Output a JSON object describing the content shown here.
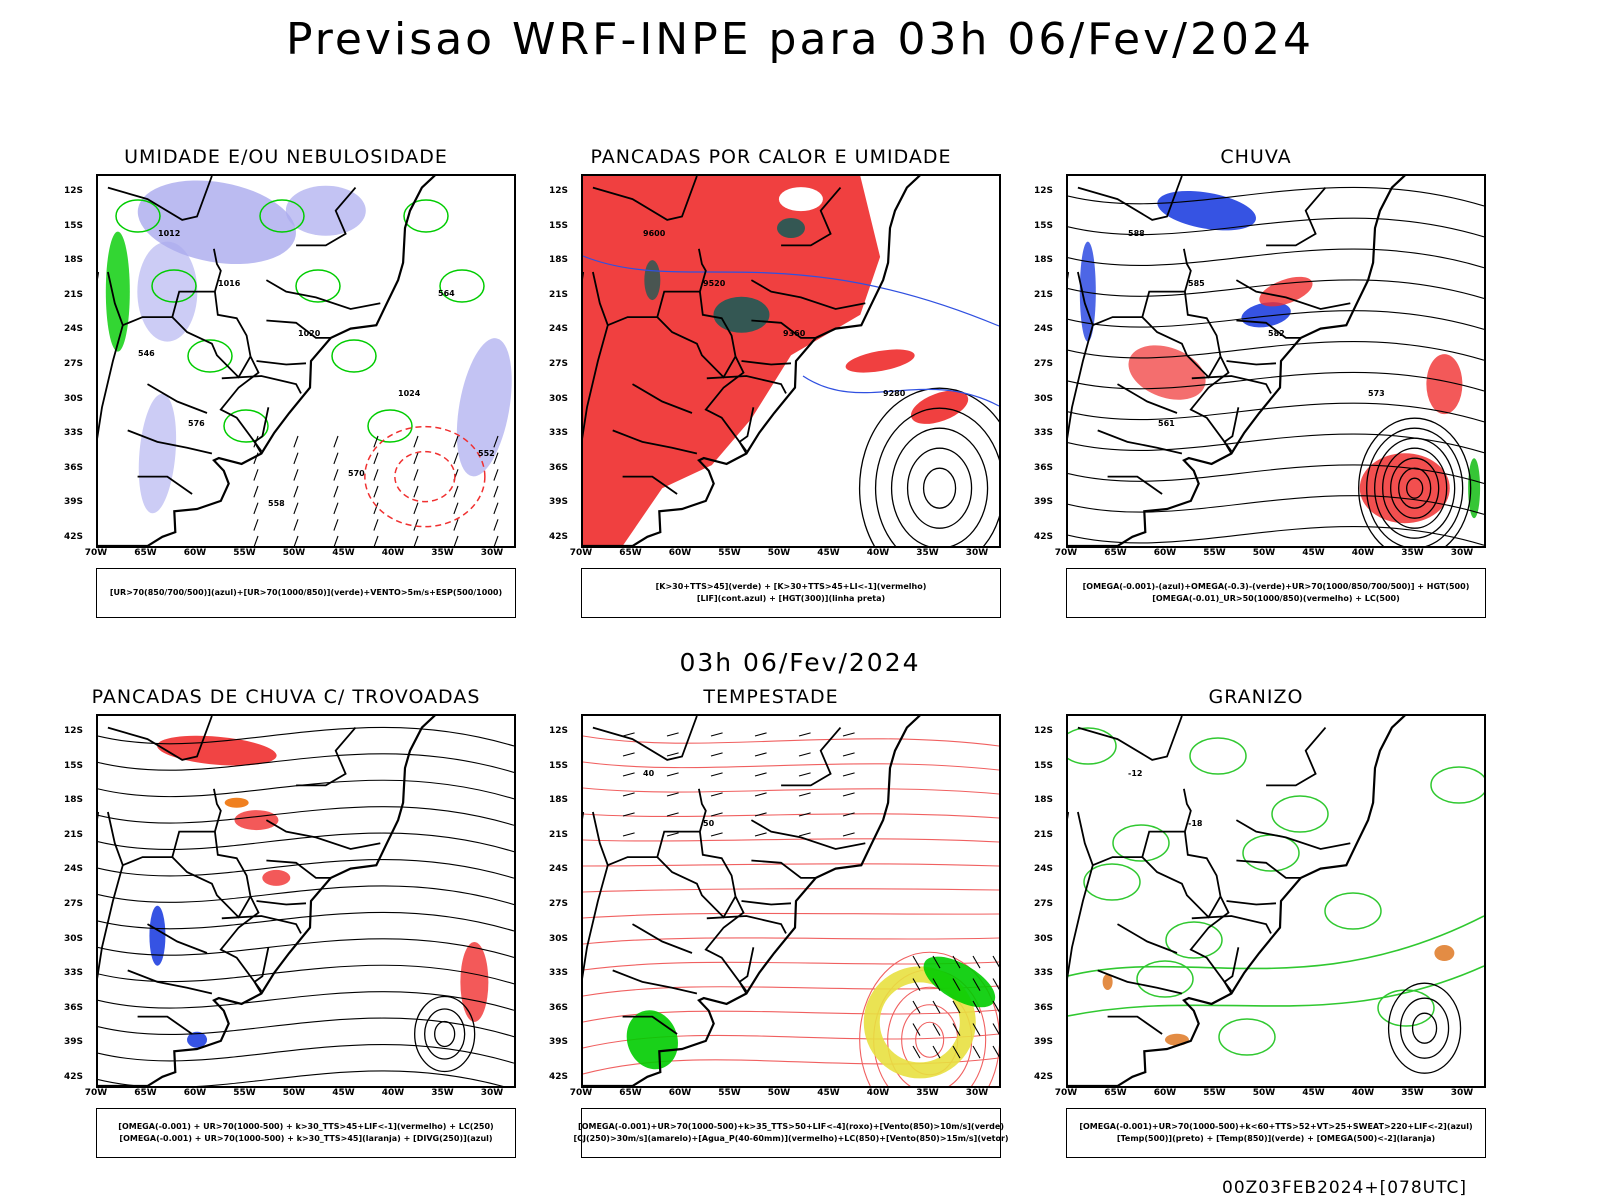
{
  "header": {
    "title": "Previsao WRF-INPE  para 03h 06/Fev/2024",
    "mid_title": "03h 06/Fev/2024",
    "footer": "00Z03FEB2024+[078UTC]"
  },
  "axes": {
    "lat_labels": [
      "12S",
      "15S",
      "18S",
      "21S",
      "24S",
      "27S",
      "30S",
      "33S",
      "36S",
      "39S",
      "42S"
    ],
    "lon_labels": [
      "70W",
      "65W",
      "60W",
      "55W",
      "50W",
      "45W",
      "40W",
      "35W",
      "30W"
    ]
  },
  "colors": {
    "land_outline": "#000000",
    "humidity_blue": "#aaaaee",
    "humidity_green": "#00cc00",
    "wind_black": "#000000",
    "pancadas_red": "#f04040",
    "pancadas_dark": "#1f5a55",
    "lif_blue": "#3050e0",
    "chuva_red": "#f03030",
    "chuva_blue": "#2040e0",
    "chuva_green": "#20c020",
    "trovoadas_orange": "#f08020",
    "tempestade_yellow": "#e8e040",
    "granizo_green": "#30c830",
    "granizo_orange": "#e08030"
  },
  "panels": [
    {
      "id": "umidade",
      "title": "UMIDADE E/OU NEBULOSIDADE",
      "legend": [
        "[UR>70(850/700/500)](azul)+[UR>70(1000/850)](verde)+VENTO>5m/s+ESP(500/1000)"
      ],
      "contour_labels": [
        "1012",
        "1016",
        "1020",
        "1024",
        "576",
        "570",
        "564",
        "558",
        "552",
        "546"
      ]
    },
    {
      "id": "pancadas-calor",
      "title": "PANCADAS POR CALOR E UMIDADE",
      "legend": [
        "[K>30+TTS>45](verde) + [K>30+TTS>45+LI<-1](vermelho)",
        "[LIF](cont.azul) + [HGT(300)](linha preta)"
      ],
      "contour_labels": [
        "9600",
        "9520",
        "9360",
        "9280"
      ]
    },
    {
      "id": "chuva",
      "title": "CHUVA",
      "legend": [
        "[OMEGA(-0.001)-(azul)+OMEGA(-0.3)-(verde)+UR>70(1000/850/700/500)] + HGT(500)",
        "[OMEGA(-0.01)_UR>50(1000/850)(vermelho) + LC(500)"
      ],
      "contour_labels": [
        "588",
        "585",
        "582",
        "573",
        "561"
      ]
    },
    {
      "id": "trovoadas",
      "title": "PANCADAS DE CHUVA C/ TROVOADAS",
      "legend": [
        "[OMEGA(-0.001) + UR>70(1000-500) + k>30_TTS>45+LIF<-1](vermelho) + LC(250)",
        "[OMEGA(-0.001) + UR>70(1000-500) + k>30_TTS>45](laranja) + [DIVG(250)](azul)"
      ],
      "contour_labels": []
    },
    {
      "id": "tempestade",
      "title": "TEMPESTADE",
      "legend": [
        "[OMEGA(-0.001)+UR>70(1000-500)+k>35_TTS>50+LIF<-4](roxo)+[Vento(850)>10m/s](verde)",
        "[CJ(250)>30m/s](amarelo)+[Agua_P(40-60mm)](vermelho)+LC(850)+[Vento(850)>15m/s](vetor)"
      ],
      "contour_labels": [
        "40",
        "50"
      ]
    },
    {
      "id": "granizo",
      "title": "GRANIZO",
      "legend": [
        "[OMEGA(-0.001)+UR>70(1000-500)+k<60+TTS>52+VT>25+SWEAT>220+LIF<-2](azul)",
        "[Temp(500)](preto) + [Temp(850)](verde) + [OMEGA(500)<-2](laranja)"
      ],
      "contour_labels": [
        "-12",
        "-18"
      ]
    }
  ]
}
